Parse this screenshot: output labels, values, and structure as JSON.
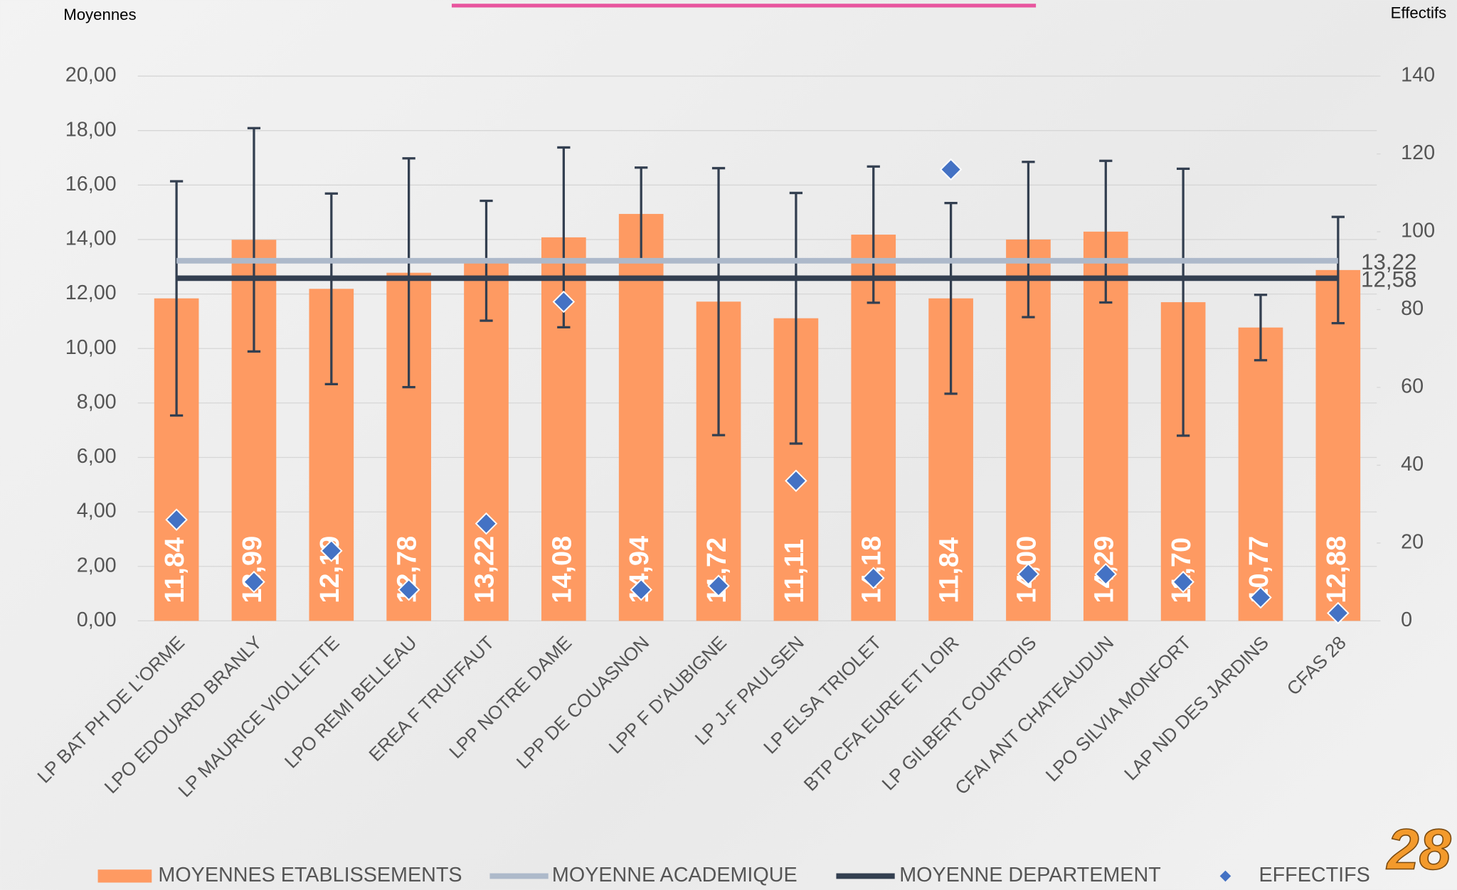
{
  "chart_data": {
    "type": "bar",
    "y_label": "Moyennes",
    "y2_label": "Effectifs",
    "categories": [
      "LP BAT PH DE L'ORME",
      "LPO EDOUARD BRANLY",
      "LP MAURICE VIOLLETTE",
      "LPO REMI BELLEAU",
      "EREA F TRUFFAUT",
      "LPP NOTRE DAME",
      "LPP DE COUASNON",
      "LPP F D'AUBIGNE",
      "LP J-F PAULSEN",
      "LP ELSA TRIOLET",
      "BTP CFA EURE ET LOIR",
      "LP GILBERT COURTOIS",
      "CFAI ANT CHATEAUDUN",
      "LPO SILVIA MONFORT",
      "LAP ND DES JARDINS",
      "CFAS 28"
    ],
    "series": [
      {
        "name": "MOYENNES ETABLISSEMENTS",
        "type": "bar",
        "color": "#fe9a62",
        "values": [
          11.84,
          13.99,
          12.19,
          12.78,
          13.22,
          14.08,
          14.94,
          11.72,
          11.11,
          14.18,
          11.84,
          14.0,
          14.29,
          11.7,
          10.77,
          12.88
        ],
        "value_labels": [
          "11,84",
          "13,99",
          "12,19",
          "12,78",
          "13,22",
          "14,08",
          "14,94",
          "11,72",
          "11,11",
          "14,18",
          "11,84",
          "14,00",
          "14,29",
          "11,70",
          "10,77",
          "12,88"
        ],
        "errors": [
          4.3,
          4.1,
          3.5,
          4.2,
          2.2,
          3.3,
          1.7,
          4.9,
          4.6,
          2.5,
          3.5,
          2.85,
          2.6,
          4.9,
          1.2,
          1.95
        ],
        "error_color": "#333f50"
      },
      {
        "name": "MOYENNE ACADEMIQUE",
        "type": "hline",
        "color": "#adb9ca",
        "value": 13.22,
        "value_label": "13,22"
      },
      {
        "name": "MOYENNE DEPARTEMENT",
        "type": "hline",
        "color": "#333f50",
        "value": 12.58,
        "value_label": "12,58"
      },
      {
        "name": "EFFECTIFS",
        "type": "scatter",
        "axis": "y2",
        "color": "#4472c4",
        "values": [
          26,
          10,
          18,
          8,
          25,
          82,
          8,
          9,
          36,
          11,
          116,
          12,
          12,
          10,
          6,
          2
        ]
      }
    ],
    "ylim": [
      0,
      20
    ],
    "yticks": [
      {
        "value": 0,
        "label": "0,00"
      },
      {
        "value": 2,
        "label": "2,00"
      },
      {
        "value": 4,
        "label": "4,00"
      },
      {
        "value": 6,
        "label": "6,00"
      },
      {
        "value": 8,
        "label": "8,00"
      },
      {
        "value": 10,
        "label": "10,00"
      },
      {
        "value": 12,
        "label": "12,00"
      },
      {
        "value": 14,
        "label": "14,00"
      },
      {
        "value": 16,
        "label": "16,00"
      },
      {
        "value": 18,
        "label": "18,00"
      },
      {
        "value": 20,
        "label": "20,00"
      }
    ],
    "y2lim": [
      0,
      140
    ],
    "y2ticks": [
      0,
      20,
      40,
      60,
      80,
      100,
      120,
      140
    ],
    "grid": true
  },
  "page_number": "28"
}
